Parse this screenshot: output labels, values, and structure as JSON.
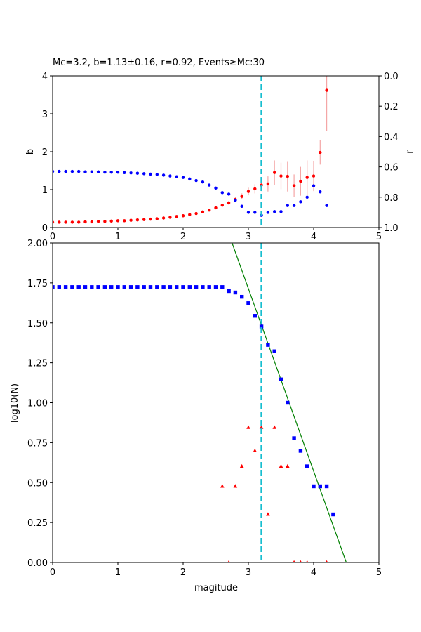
{
  "chart_data": [
    {
      "type": "scatter",
      "title": "Mc=3.2, b=1.13±0.16, r=0.92, Events≥Mc:30",
      "xlim": [
        0,
        5
      ],
      "ylim_left": [
        0,
        4
      ],
      "ylim_right": [
        1.0,
        0.0
      ],
      "ylabel_left": "b",
      "ylabel_right": "r",
      "xticks": [
        "0",
        "1",
        "2",
        "3",
        "4",
        "5"
      ],
      "yticks_left": [
        "0",
        "1",
        "2",
        "3",
        "4"
      ],
      "yticks_right": [
        "0.0",
        "0.2",
        "0.4",
        "0.6",
        "0.8",
        "1.0"
      ],
      "vline_x": 3.2,
      "series": [
        {
          "axis": "left",
          "color": "#ff0000",
          "marker": "circle",
          "points": [
            [
              0.0,
              0.14
            ],
            [
              0.1,
              0.14
            ],
            [
              0.2,
              0.14
            ],
            [
              0.3,
              0.14
            ],
            [
              0.4,
              0.14
            ],
            [
              0.5,
              0.15
            ],
            [
              0.6,
              0.15
            ],
            [
              0.7,
              0.16
            ],
            [
              0.8,
              0.16
            ],
            [
              0.9,
              0.17
            ],
            [
              1.0,
              0.18
            ],
            [
              1.1,
              0.18
            ],
            [
              1.2,
              0.19
            ],
            [
              1.3,
              0.2
            ],
            [
              1.4,
              0.21
            ],
            [
              1.5,
              0.22
            ],
            [
              1.6,
              0.23
            ],
            [
              1.7,
              0.25
            ],
            [
              1.8,
              0.27
            ],
            [
              1.9,
              0.29
            ],
            [
              2.0,
              0.31
            ],
            [
              2.1,
              0.34
            ],
            [
              2.2,
              0.37
            ],
            [
              2.3,
              0.41
            ],
            [
              2.4,
              0.46
            ],
            [
              2.5,
              0.52
            ],
            [
              2.6,
              0.59
            ],
            [
              2.7,
              0.65
            ],
            [
              2.8,
              0.74
            ],
            [
              2.9,
              0.82
            ],
            [
              3.0,
              0.95
            ],
            [
              3.1,
              1.02
            ],
            [
              3.2,
              1.12
            ],
            [
              3.3,
              1.15
            ],
            [
              3.4,
              1.45
            ],
            [
              3.5,
              1.36
            ],
            [
              3.6,
              1.35
            ],
            [
              3.7,
              1.1
            ],
            [
              3.8,
              1.22
            ],
            [
              3.9,
              1.32
            ],
            [
              4.0,
              1.36
            ],
            [
              4.1,
              1.98
            ],
            [
              4.2,
              3.62
            ]
          ],
          "errors": [
            0.01,
            0.01,
            0.01,
            0.01,
            0.01,
            0.01,
            0.01,
            0.01,
            0.01,
            0.01,
            0.01,
            0.01,
            0.01,
            0.01,
            0.01,
            0.01,
            0.01,
            0.01,
            0.01,
            0.01,
            0.01,
            0.02,
            0.02,
            0.02,
            0.03,
            0.03,
            0.04,
            0.05,
            0.06,
            0.08,
            0.1,
            0.12,
            0.16,
            0.2,
            0.32,
            0.35,
            0.4,
            0.3,
            0.38,
            0.45,
            0.4,
            0.32,
            1.07
          ]
        },
        {
          "axis": "right",
          "color": "#0000ff",
          "marker": "circle",
          "points": [
            [
              0.0,
              0.63
            ],
            [
              0.1,
              0.63
            ],
            [
              0.2,
              0.63
            ],
            [
              0.3,
              0.63
            ],
            [
              0.4,
              0.63
            ],
            [
              0.5,
              0.633
            ],
            [
              0.6,
              0.633
            ],
            [
              0.7,
              0.633
            ],
            [
              0.8,
              0.635
            ],
            [
              0.9,
              0.635
            ],
            [
              1.0,
              0.635
            ],
            [
              1.1,
              0.638
            ],
            [
              1.2,
              0.64
            ],
            [
              1.3,
              0.642
            ],
            [
              1.4,
              0.645
            ],
            [
              1.5,
              0.648
            ],
            [
              1.6,
              0.65
            ],
            [
              1.7,
              0.655
            ],
            [
              1.8,
              0.66
            ],
            [
              1.9,
              0.665
            ],
            [
              2.0,
              0.67
            ],
            [
              2.1,
              0.68
            ],
            [
              2.2,
              0.69
            ],
            [
              2.3,
              0.7
            ],
            [
              2.4,
              0.72
            ],
            [
              2.5,
              0.74
            ],
            [
              2.6,
              0.77
            ],
            [
              2.7,
              0.78
            ],
            [
              2.8,
              0.82
            ],
            [
              2.9,
              0.86
            ],
            [
              3.0,
              0.9
            ],
            [
              3.1,
              0.9
            ],
            [
              3.2,
              0.92
            ],
            [
              3.3,
              0.9
            ],
            [
              3.4,
              0.895
            ],
            [
              3.5,
              0.895
            ],
            [
              3.6,
              0.855
            ],
            [
              3.7,
              0.855
            ],
            [
              3.8,
              0.83
            ],
            [
              3.9,
              0.8
            ],
            [
              4.0,
              0.725
            ],
            [
              4.1,
              0.765
            ],
            [
              4.2,
              0.855
            ]
          ]
        }
      ]
    },
    {
      "type": "scatter",
      "xlabel": "magitude",
      "ylabel": "log10(N)",
      "xlim": [
        0,
        5
      ],
      "ylim": [
        0,
        2
      ],
      "xticks": [
        "0",
        "1",
        "2",
        "3",
        "4",
        "5"
      ],
      "yticks": [
        "0.00",
        "0.25",
        "0.50",
        "0.75",
        "1.00",
        "1.25",
        "1.50",
        "1.75",
        "2.00"
      ],
      "vline_x": 3.2,
      "fit_line": {
        "color": "#008000",
        "points": [
          [
            2.75,
            2.0
          ],
          [
            4.5,
            0.0
          ]
        ]
      },
      "series": [
        {
          "color": "#0000ff",
          "marker": "square",
          "points": [
            [
              0.0,
              1.724
            ],
            [
              0.1,
              1.724
            ],
            [
              0.2,
              1.724
            ],
            [
              0.3,
              1.724
            ],
            [
              0.4,
              1.724
            ],
            [
              0.5,
              1.724
            ],
            [
              0.6,
              1.724
            ],
            [
              0.7,
              1.724
            ],
            [
              0.8,
              1.724
            ],
            [
              0.9,
              1.724
            ],
            [
              1.0,
              1.724
            ],
            [
              1.1,
              1.724
            ],
            [
              1.2,
              1.724
            ],
            [
              1.3,
              1.724
            ],
            [
              1.4,
              1.724
            ],
            [
              1.5,
              1.724
            ],
            [
              1.6,
              1.724
            ],
            [
              1.7,
              1.724
            ],
            [
              1.8,
              1.724
            ],
            [
              1.9,
              1.724
            ],
            [
              2.0,
              1.724
            ],
            [
              2.1,
              1.724
            ],
            [
              2.2,
              1.724
            ],
            [
              2.3,
              1.724
            ],
            [
              2.4,
              1.724
            ],
            [
              2.5,
              1.724
            ],
            [
              2.6,
              1.724
            ],
            [
              2.7,
              1.699
            ],
            [
              2.8,
              1.69
            ],
            [
              2.9,
              1.663
            ],
            [
              3.0,
              1.623
            ],
            [
              3.1,
              1.544
            ],
            [
              3.2,
              1.477
            ],
            [
              3.3,
              1.362
            ],
            [
              3.4,
              1.322
            ],
            [
              3.5,
              1.146
            ],
            [
              3.6,
              1.0
            ],
            [
              3.7,
              0.778
            ],
            [
              3.8,
              0.699
            ],
            [
              3.9,
              0.602
            ],
            [
              4.0,
              0.477
            ],
            [
              4.1,
              0.477
            ],
            [
              4.2,
              0.477
            ],
            [
              4.3,
              0.301
            ]
          ]
        },
        {
          "color": "#ff0000",
          "marker": "triangle",
          "points": [
            [
              2.6,
              0.477
            ],
            [
              2.7,
              0.0
            ],
            [
              2.8,
              0.477
            ],
            [
              2.9,
              0.602
            ],
            [
              3.0,
              0.845
            ],
            [
              3.1,
              0.699
            ],
            [
              3.2,
              0.845
            ],
            [
              3.3,
              0.301
            ],
            [
              3.4,
              0.845
            ],
            [
              3.5,
              0.602
            ],
            [
              3.6,
              0.602
            ],
            [
              3.7,
              0.0
            ],
            [
              3.8,
              0.0
            ],
            [
              3.9,
              0.0
            ],
            [
              4.2,
              0.0
            ]
          ]
        }
      ]
    }
  ]
}
